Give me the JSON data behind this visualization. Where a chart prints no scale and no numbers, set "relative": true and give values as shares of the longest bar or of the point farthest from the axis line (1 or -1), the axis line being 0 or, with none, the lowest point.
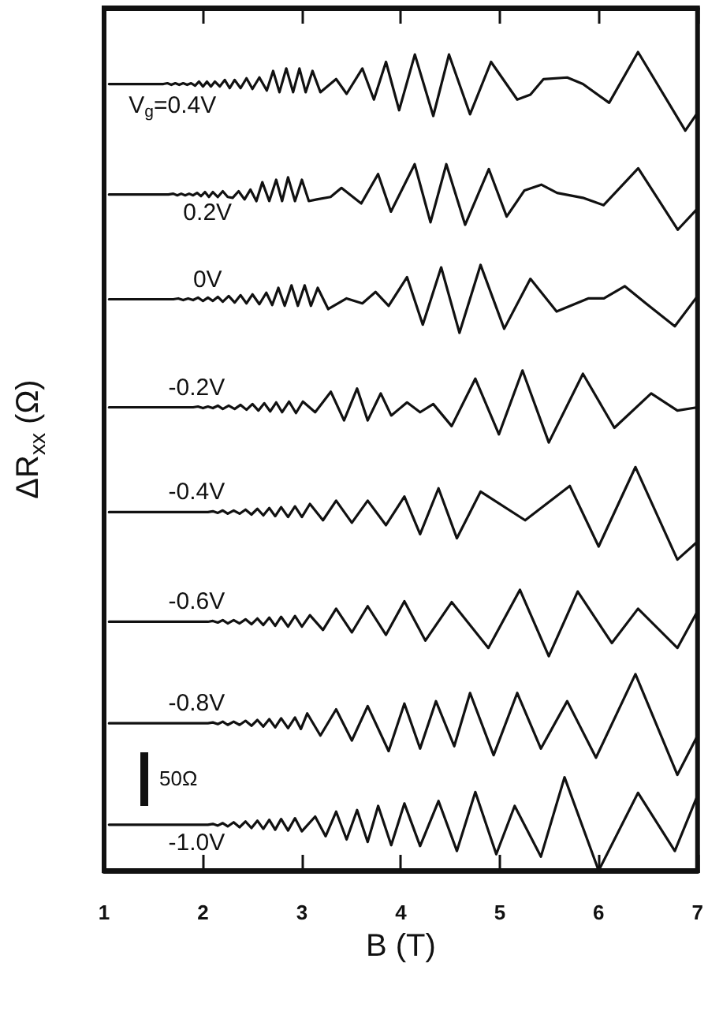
{
  "chart_data": {
    "type": "line",
    "xlabel": "B (T)",
    "ylabel": "ΔR$_{xx}$ (Ω)",
    "relative": true,
    "xlim": [
      1,
      7
    ],
    "xticks": [
      1,
      2,
      3,
      4,
      5,
      6,
      7
    ],
    "grid": false,
    "legend": false,
    "marker": "none",
    "line_style": "solid",
    "annotations": [
      "50Ω"
    ],
    "series": [
      {
        "name": "V$_{g}$=0.4V",
        "color": "#111111",
        "x": [
          1.05,
          1.6,
          1.64,
          1.68,
          1.72,
          1.76,
          1.8,
          1.84,
          1.88,
          1.92,
          1.96,
          2.0,
          2.04,
          2.08,
          2.12,
          2.17,
          2.22,
          2.27,
          2.32,
          2.38,
          2.44,
          2.5,
          2.57,
          2.645,
          2.709,
          2.773,
          2.842,
          2.911,
          2.975,
          3.038,
          3.107,
          3.187,
          3.346,
          3.452,
          3.611,
          3.728,
          3.85,
          3.983,
          4.142,
          4.328,
          4.487,
          4.7,
          4.912,
          5.177,
          5.31,
          5.443,
          5.682,
          5.841,
          6.106,
          6.398,
          6.876,
          7.0
        ],
        "values": [
          0.961,
          0.961,
          0.962,
          0.96,
          0.962,
          0.96,
          0.962,
          0.96,
          0.962,
          0.959,
          0.964,
          0.958,
          0.964,
          0.958,
          0.964,
          0.958,
          0.966,
          0.956,
          0.966,
          0.956,
          0.968,
          0.955,
          0.969,
          0.953,
          0.977,
          0.951,
          0.98,
          0.951,
          0.98,
          0.951,
          0.977,
          0.951,
          0.967,
          0.949,
          0.98,
          0.942,
          0.988,
          0.929,
          0.997,
          0.922,
          0.997,
          0.924,
          0.988,
          0.942,
          0.948,
          0.967,
          0.969,
          0.961,
          0.938,
          1.0,
          0.904,
          0.926
        ]
      },
      {
        "name": "0.2V",
        "color": "#111111",
        "x": [
          1.05,
          1.65,
          1.7,
          1.74,
          1.78,
          1.82,
          1.86,
          1.9,
          1.94,
          1.98,
          2.02,
          2.06,
          2.1,
          2.15,
          2.2,
          2.25,
          2.3,
          2.36,
          2.42,
          2.48,
          2.54,
          2.6,
          2.67,
          2.74,
          2.8,
          2.86,
          2.93,
          3.0,
          3.07,
          3.15,
          3.29,
          3.4,
          3.6,
          3.77,
          3.9,
          4.14,
          4.3,
          4.46,
          4.65,
          4.89,
          5.07,
          5.25,
          5.42,
          5.58,
          5.84,
          6.05,
          6.4,
          6.8,
          7.0
        ],
        "values": [
          0.826,
          0.826,
          0.827,
          0.825,
          0.827,
          0.825,
          0.827,
          0.825,
          0.828,
          0.824,
          0.829,
          0.823,
          0.829,
          0.823,
          0.83,
          0.823,
          0.822,
          0.83,
          0.82,
          0.832,
          0.818,
          0.841,
          0.818,
          0.844,
          0.818,
          0.847,
          0.818,
          0.844,
          0.818,
          0.82,
          0.823,
          0.834,
          0.815,
          0.851,
          0.805,
          0.863,
          0.792,
          0.863,
          0.789,
          0.857,
          0.799,
          0.831,
          0.838,
          0.828,
          0.822,
          0.813,
          0.858,
          0.783,
          0.809
        ]
      },
      {
        "name": "0V",
        "color": "#111111",
        "x": [
          1.05,
          1.7,
          1.75,
          1.8,
          1.85,
          1.9,
          1.95,
          2.0,
          2.05,
          2.1,
          2.15,
          2.2,
          2.26,
          2.32,
          2.38,
          2.44,
          2.5,
          2.57,
          2.64,
          2.7,
          2.762,
          2.826,
          2.895,
          2.959,
          3.028,
          3.091,
          3.16,
          3.266,
          3.452,
          3.611,
          3.744,
          3.877,
          4.063,
          4.222,
          4.408,
          4.593,
          4.806,
          5.045,
          5.31,
          5.575,
          5.894,
          6.053,
          6.265,
          6.478,
          6.77,
          7.0
        ],
        "values": [
          0.698,
          0.698,
          0.699,
          0.697,
          0.699,
          0.697,
          0.7,
          0.696,
          0.7,
          0.696,
          0.701,
          0.695,
          0.702,
          0.694,
          0.703,
          0.693,
          0.704,
          0.692,
          0.706,
          0.691,
          0.712,
          0.69,
          0.715,
          0.69,
          0.715,
          0.69,
          0.712,
          0.686,
          0.699,
          0.693,
          0.707,
          0.69,
          0.725,
          0.667,
          0.737,
          0.657,
          0.74,
          0.662,
          0.723,
          0.683,
          0.699,
          0.699,
          0.714,
          0.693,
          0.665,
          0.702
        ]
      },
      {
        "name": "-0.2V",
        "color": "#111111",
        "x": [
          1.05,
          1.9,
          1.95,
          2.0,
          2.05,
          2.1,
          2.15,
          2.2,
          2.26,
          2.32,
          2.38,
          2.44,
          2.5,
          2.56,
          2.62,
          2.68,
          2.74,
          2.8,
          2.87,
          2.94,
          3.01,
          3.134,
          3.293,
          3.426,
          3.558,
          3.665,
          3.797,
          3.903,
          4.063,
          4.195,
          4.328,
          4.514,
          4.753,
          4.992,
          5.23,
          5.496,
          5.841,
          6.159,
          6.531,
          6.796,
          7.0
        ],
        "values": [
          0.566,
          0.566,
          0.567,
          0.565,
          0.567,
          0.565,
          0.568,
          0.564,
          0.568,
          0.564,
          0.569,
          0.563,
          0.57,
          0.562,
          0.571,
          0.561,
          0.572,
          0.56,
          0.573,
          0.559,
          0.573,
          0.56,
          0.585,
          0.55,
          0.589,
          0.55,
          0.583,
          0.556,
          0.572,
          0.56,
          0.57,
          0.543,
          0.601,
          0.533,
          0.611,
          0.523,
          0.607,
          0.541,
          0.583,
          0.562,
          0.566
        ]
      },
      {
        "name": "-0.4V",
        "color": "#111111",
        "x": [
          1.05,
          2.05,
          2.1,
          2.15,
          2.2,
          2.25,
          2.31,
          2.37,
          2.43,
          2.49,
          2.55,
          2.61,
          2.67,
          2.73,
          2.79,
          2.86,
          2.93,
          3.0,
          3.081,
          3.213,
          3.346,
          3.505,
          3.665,
          3.85,
          4.036,
          4.195,
          4.381,
          4.567,
          4.806,
          5.257,
          5.708,
          6.0,
          6.372,
          6.796,
          7.0
        ],
        "values": [
          0.438,
          0.438,
          0.439,
          0.437,
          0.44,
          0.436,
          0.44,
          0.436,
          0.441,
          0.435,
          0.442,
          0.434,
          0.443,
          0.433,
          0.444,
          0.432,
          0.445,
          0.432,
          0.448,
          0.428,
          0.452,
          0.425,
          0.452,
          0.422,
          0.457,
          0.411,
          0.467,
          0.406,
          0.463,
          0.428,
          0.47,
          0.396,
          0.493,
          0.38,
          0.402
        ]
      },
      {
        "name": "-0.6V",
        "color": "#111111",
        "x": [
          1.05,
          2.05,
          2.1,
          2.15,
          2.2,
          2.25,
          2.31,
          2.37,
          2.43,
          2.49,
          2.55,
          2.61,
          2.67,
          2.73,
          2.79,
          2.86,
          2.93,
          3.0,
          3.081,
          3.213,
          3.346,
          3.505,
          3.665,
          3.85,
          4.036,
          4.248,
          4.514,
          4.885,
          5.204,
          5.496,
          5.788,
          6.133,
          6.398,
          6.796,
          7.0
        ],
        "values": [
          0.304,
          0.304,
          0.305,
          0.303,
          0.306,
          0.302,
          0.306,
          0.302,
          0.307,
          0.301,
          0.308,
          0.3,
          0.309,
          0.299,
          0.31,
          0.298,
          0.311,
          0.298,
          0.312,
          0.294,
          0.32,
          0.291,
          0.323,
          0.288,
          0.329,
          0.281,
          0.328,
          0.272,
          0.343,
          0.262,
          0.341,
          0.278,
          0.32,
          0.272,
          0.317
        ]
      },
      {
        "name": "-0.8V",
        "color": "#111111",
        "x": [
          1.05,
          2.05,
          2.1,
          2.15,
          2.2,
          2.25,
          2.31,
          2.37,
          2.43,
          2.49,
          2.55,
          2.61,
          2.67,
          2.73,
          2.79,
          2.86,
          2.93,
          2.99,
          3.054,
          3.187,
          3.346,
          3.505,
          3.665,
          3.877,
          4.036,
          4.195,
          4.355,
          4.54,
          4.7,
          4.938,
          5.177,
          5.416,
          5.682,
          5.973,
          6.372,
          6.796,
          7.0
        ],
        "values": [
          0.18,
          0.18,
          0.181,
          0.179,
          0.182,
          0.178,
          0.182,
          0.178,
          0.183,
          0.177,
          0.184,
          0.176,
          0.185,
          0.175,
          0.186,
          0.174,
          0.187,
          0.173,
          0.192,
          0.165,
          0.197,
          0.159,
          0.201,
          0.146,
          0.204,
          0.149,
          0.207,
          0.152,
          0.217,
          0.141,
          0.217,
          0.149,
          0.207,
          0.138,
          0.24,
          0.117,
          0.165
        ]
      },
      {
        "name": "-1.0V",
        "color": "#111111",
        "x": [
          1.05,
          2.05,
          2.1,
          2.15,
          2.2,
          2.25,
          2.31,
          2.37,
          2.43,
          2.49,
          2.55,
          2.61,
          2.67,
          2.73,
          2.79,
          2.86,
          2.93,
          3.0,
          3.134,
          3.24,
          3.346,
          3.452,
          3.558,
          3.665,
          3.771,
          3.903,
          4.036,
          4.195,
          4.381,
          4.567,
          4.753,
          4.965,
          5.151,
          5.416,
          5.655,
          6.0,
          6.398,
          6.77,
          7.0
        ],
        "values": [
          0.056,
          0.056,
          0.057,
          0.055,
          0.058,
          0.054,
          0.059,
          0.053,
          0.06,
          0.052,
          0.061,
          0.051,
          0.062,
          0.05,
          0.063,
          0.049,
          0.064,
          0.048,
          0.066,
          0.042,
          0.072,
          0.038,
          0.074,
          0.035,
          0.079,
          0.031,
          0.082,
          0.03,
          0.085,
          0.024,
          0.096,
          0.02,
          0.079,
          0.017,
          0.114,
          0,
          0.095,
          0.024,
          0.092
        ]
      }
    ]
  }
}
